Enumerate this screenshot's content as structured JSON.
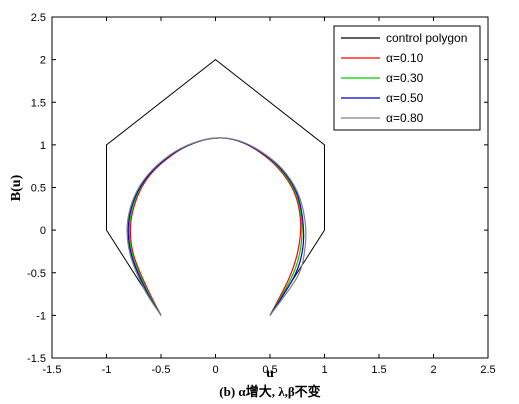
{
  "chart_data": {
    "type": "line",
    "xlabel": "u",
    "ylabel": "B(u)",
    "caption": "(b) α增大, λ,β不变",
    "xlim": [
      -1.5,
      2.5
    ],
    "ylim": [
      -1.5,
      2.5
    ],
    "xticks": [
      -1.5,
      -1,
      -0.5,
      0,
      0.5,
      1,
      1.5,
      2,
      2.5
    ],
    "yticks": [
      -1.5,
      -1,
      -0.5,
      0,
      0.5,
      1,
      1.5,
      2,
      2.5
    ],
    "xtick_labels": [
      "-1.5",
      "-1",
      "-0.5",
      "0",
      "0.5",
      "1",
      "1.5",
      "2",
      "2.5"
    ],
    "ytick_labels": [
      "-1.5",
      "-1",
      "-0.5",
      "0",
      "0.5",
      "1",
      "1.5",
      "2",
      "2.5"
    ],
    "grid": false,
    "legend_position": "top-right",
    "series": [
      {
        "name": "control polygon",
        "color": "#000000",
        "x": [
          -0.5,
          -1,
          -1,
          0,
          1,
          1,
          0.5
        ],
        "y": [
          -1,
          0,
          1,
          2,
          1,
          0,
          -1
        ]
      },
      {
        "name": "α=0.10",
        "color": "#ff0000",
        "x": [
          -0.5,
          -0.62,
          -0.75,
          -0.78,
          -0.72,
          -0.6,
          -0.4,
          -0.2,
          0,
          0.2,
          0.4,
          0.58,
          0.72,
          0.78,
          0.76,
          0.68,
          0.5
        ],
        "y": [
          -1,
          -0.7,
          -0.3,
          0.05,
          0.38,
          0.65,
          0.88,
          1.02,
          1.08,
          1.05,
          0.92,
          0.72,
          0.45,
          0.12,
          -0.22,
          -0.55,
          -1
        ]
      },
      {
        "name": "α=0.30",
        "color": "#00cc00",
        "x": [
          -0.5,
          -0.63,
          -0.76,
          -0.79,
          -0.73,
          -0.61,
          -0.41,
          -0.2,
          0,
          0.2,
          0.41,
          0.59,
          0.73,
          0.79,
          0.78,
          0.7,
          0.5
        ],
        "y": [
          -1,
          -0.7,
          -0.3,
          0.05,
          0.38,
          0.65,
          0.88,
          1.02,
          1.08,
          1.05,
          0.92,
          0.72,
          0.45,
          0.12,
          -0.22,
          -0.55,
          -1
        ]
      },
      {
        "name": "α=0.50",
        "color": "#0000cc",
        "x": [
          -0.5,
          -0.64,
          -0.77,
          -0.8,
          -0.74,
          -0.61,
          -0.41,
          -0.2,
          0,
          0.2,
          0.41,
          0.6,
          0.74,
          0.8,
          0.8,
          0.72,
          0.5
        ],
        "y": [
          -1,
          -0.7,
          -0.3,
          0.05,
          0.38,
          0.65,
          0.88,
          1.02,
          1.08,
          1.05,
          0.92,
          0.72,
          0.45,
          0.12,
          -0.22,
          -0.55,
          -1
        ]
      },
      {
        "name": "α=0.80",
        "color": "#808080",
        "x": [
          -0.5,
          -0.65,
          -0.78,
          -0.81,
          -0.75,
          -0.62,
          -0.42,
          -0.21,
          0,
          0.21,
          0.42,
          0.61,
          0.75,
          0.82,
          0.82,
          0.75,
          0.5
        ],
        "y": [
          -1,
          -0.7,
          -0.3,
          0.05,
          0.38,
          0.65,
          0.88,
          1.02,
          1.08,
          1.05,
          0.92,
          0.72,
          0.45,
          0.12,
          -0.22,
          -0.55,
          -1
        ]
      }
    ]
  }
}
